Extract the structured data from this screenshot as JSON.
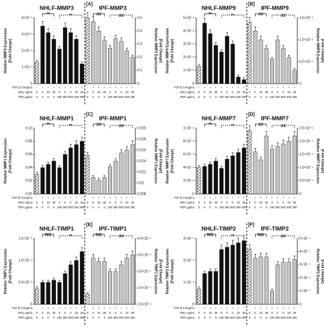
{
  "conditions": {
    "rows": [
      {
        "label": "TGF-β 2.5ng/mL",
        "values": [
          "-",
          "+",
          "+",
          "+",
          "+",
          "+",
          "+",
          "+",
          "+",
          "-",
          "+",
          "+",
          "+",
          "+",
          "+",
          "+",
          "+",
          "+"
        ]
      },
      {
        "label": "INFγ ng/mL",
        "values": [
          "0",
          "0",
          "10",
          "30",
          "0",
          "0",
          "0",
          "10",
          "30",
          "0",
          "0",
          "10",
          "30",
          "0",
          "0",
          "0",
          "10",
          "30"
        ]
      },
      {
        "label": "PDF µg/mL",
        "values": [
          "0",
          "0",
          "0",
          "0",
          "100",
          "300",
          "500",
          "300",
          "300",
          "0",
          "0",
          "0",
          "0",
          "100",
          "300",
          "500",
          "300",
          "300"
        ]
      }
    ]
  },
  "chart_data": [
    {
      "type": "bar",
      "panel_label": "[A]",
      "group_titles": [
        "NHLF-MMP3",
        "IPF-MMP3"
      ],
      "ylabel": [
        "Relative MMP3 Expression",
        "[Fold Change]"
      ],
      "y2label": [
        "Relative MMP3 Expression",
        "[Fold Change]"
      ],
      "ylim": [
        0,
        0.04
      ],
      "yticks": [
        0,
        {
          "value": 0.01,
          "label": "1×10⁻²"
        },
        {
          "value": 0.02,
          "label": "2×10⁻²"
        },
        {
          "value": 0.03,
          "label": "3×10⁻²"
        },
        {
          "value": 0.04,
          "label": "4×10⁻²"
        }
      ],
      "y2lim": [
        0,
        0.5
      ],
      "y2ticks": [
        0,
        0.1,
        0.2,
        0.3,
        0.4,
        0.5
      ],
      "annotations": [
        [
          "**",
          "**"
        ],
        [
          "##",
          "##"
        ]
      ],
      "series": [
        {
          "name": "NHLF",
          "color": "#111111",
          "values": [
            0.013,
            0.035,
            0.031,
            0.027,
            0.021,
            0.034,
            0.031,
            0.027,
            0.012
          ]
        },
        {
          "name": "IPF",
          "color": "#c4c4c4",
          "axis": "y2",
          "values": [
            0.5,
            0.47,
            0.4,
            0.33,
            0.27,
            0.34,
            0.32,
            0.25,
            0.2
          ]
        }
      ]
    },
    {
      "type": "bar",
      "panel_label": "[B]",
      "group_titles": [
        "NHLF-MMP9",
        "IPF-MMP9"
      ],
      "ylabel": [
        "Relative MMP9 Expression",
        "[Fold Change]"
      ],
      "y2label": [
        "Relative MMP9 Expression",
        "[Fold Change]"
      ],
      "ylim": [
        0,
        5e-06
      ],
      "yticks": [
        0,
        {
          "value": 1e-06,
          "label": "1×10⁻⁶"
        },
        {
          "value": 2e-06,
          "label": "2×10⁻⁶"
        },
        {
          "value": 3e-06,
          "label": "3×10⁻⁶"
        },
        {
          "value": 4e-06,
          "label": "4×10⁻⁶"
        },
        {
          "value": 5e-06,
          "label": "5×10⁻⁶"
        }
      ],
      "y2lim": [
        0,
        1.5e-05
      ],
      "y2ticks": [
        0,
        {
          "value": 5e-06,
          "label": "5.0×10⁻⁶"
        },
        {
          "value": 1e-05,
          "label": "1.0×10⁻⁵"
        },
        {
          "value": 1.5e-05,
          "label": "1.5×10⁻⁵"
        }
      ],
      "annotations": [
        [
          "**",
          "**"
        ],
        [
          "##",
          "##"
        ]
      ],
      "series": [
        {
          "name": "NHLF",
          "color": "#111111",
          "values": [
            1.3e-06,
            4.6e-06,
            3.8e-06,
            2.9e-06,
            2.4e-06,
            3.6e-06,
            3e-06,
            5e-07,
            3e-07
          ]
        },
        {
          "name": "IPF",
          "color": "#c4c4c4",
          "axis": "y2",
          "values": [
            1.4e-05,
            1.2e-05,
            1e-05,
            8e-06,
            5.5e-06,
            1e-05,
            8e-06,
            6e-06,
            3e-06
          ]
        }
      ]
    },
    {
      "type": "bar",
      "panel_label": "[C]",
      "group_titles": [
        "NHLF-MMP1",
        "IPF-MMP1"
      ],
      "ylabel": [
        "Relative MMP1 Expression",
        "[Fold Change]"
      ],
      "y2label": [
        "Relative MMP1 Expression",
        "[Fold Change]"
      ],
      "ylim": [
        0,
        0.1
      ],
      "yticks": [
        {
          "value": 0,
          "label": "0.00"
        },
        {
          "value": 0.02,
          "label": "0.02"
        },
        {
          "value": 0.04,
          "label": "0.04"
        },
        {
          "value": 0.06,
          "label": "0.06"
        },
        {
          "value": 0.08,
          "label": "0.08"
        },
        {
          "value": 0.1,
          "label": "0.10"
        }
      ],
      "y2lim": [
        0.008,
        0.02
      ],
      "y2ticks": [
        0.008,
        0.01,
        0.012,
        0.014,
        0.016,
        0.018,
        {
          "value": 0.02,
          "label": "0.020"
        }
      ],
      "annotations": [
        [
          "**",
          "**"
        ],
        [
          "##",
          "##"
        ]
      ],
      "series": [
        {
          "name": "NHLF",
          "color": "#111111",
          "values": [
            0.03,
            0.04,
            0.045,
            0.05,
            0.04,
            0.06,
            0.07,
            0.075,
            0.08
          ]
        },
        {
          "name": "IPF",
          "color": "#c4c4c4",
          "axis": "y2",
          "values": [
            0.015,
            0.011,
            0.0105,
            0.011,
            0.013,
            0.014,
            0.0155,
            0.016,
            0.017
          ]
        }
      ]
    },
    {
      "type": "bar",
      "panel_label": "[D]",
      "group_titles": [
        "NHLF-MMP7",
        "IPF-MMP7"
      ],
      "ylabel": [
        "Relative MMP7 Expression",
        "[Fold Change]"
      ],
      "y2label": [
        "Relative MMP7 Expression",
        "[Fold Change]"
      ],
      "ylim": [
        0,
        1e-05
      ],
      "yticks": [
        0,
        {
          "value": 2e-06,
          "label": "2×10⁻⁶"
        },
        {
          "value": 4e-06,
          "label": "4×10⁻⁶"
        },
        {
          "value": 6e-06,
          "label": "6×10⁻⁶"
        },
        {
          "value": 8e-06,
          "label": "8×10⁻⁶"
        },
        {
          "value": 1e-05,
          "label": "1×10⁻⁵"
        }
      ],
      "y2lim": [
        0,
        2.5e-05
      ],
      "y2ticks": [
        0,
        {
          "value": 5e-06,
          "label": "5.0×10⁻⁶"
        },
        {
          "value": 1e-05,
          "label": "1.0×10⁻⁵"
        },
        {
          "value": 1.5e-05,
          "label": "1.5×10⁻⁵"
        },
        {
          "value": 2e-05,
          "label": "2.0×10⁻⁵"
        },
        {
          "value": 2.5e-05,
          "label": "2.5×10⁻⁵"
        }
      ],
      "annotations": [
        [
          "**",
          "**"
        ],
        [
          "##",
          "##"
        ]
      ],
      "series": [
        {
          "name": "NHLF",
          "color": "#111111",
          "values": [
            4e-06,
            4.2e-06,
            4.5e-06,
            5e-06,
            3.9e-06,
            5.3e-06,
            5.8e-06,
            6.3e-06,
            7e-06
          ]
        },
        {
          "name": "IPF",
          "color": "#c4c4c4",
          "axis": "y2",
          "values": [
            2.4e-05,
            1.6e-05,
            1.3e-05,
            2.2e-05,
            1.7e-05,
            1.8e-05,
            1.9e-05,
            2e-05,
            2.2e-05
          ]
        }
      ]
    },
    {
      "type": "bar",
      "panel_label": "[E]",
      "group_titles": [
        "NHLF-TIMP1",
        "IPF-TIMP1"
      ],
      "ylabel": [
        "Relative TIMP1 Expression",
        "[Fold Change]"
      ],
      "y2label": [
        "Relative TIMP1 Expression",
        "[Fold Change]"
      ],
      "ylim": [
        0,
        1.5e-05
      ],
      "yticks": [
        0,
        {
          "value": 5e-06,
          "label": "5.0×10⁻⁶"
        },
        {
          "value": 1e-05,
          "label": "1.0×10⁻⁵"
        },
        {
          "value": 1.5e-05,
          "label": "1.5×10⁻⁵"
        }
      ],
      "y2lim": [
        2e-05,
        4e-05
      ],
      "y2ticks": [
        {
          "value": 2e-05,
          "label": "2.0×10⁻⁵"
        },
        {
          "value": 2.5e-05,
          "label": "2.5×10⁻⁵"
        },
        {
          "value": 3e-05,
          "label": "3.0×10⁻⁵"
        },
        {
          "value": 3.5e-05,
          "label": "3.5×10⁻⁵"
        },
        {
          "value": 4e-05,
          "label": "4.0×10⁻⁵"
        }
      ],
      "annotations": [
        [
          "NS",
          "**"
        ],
        [
          "NS",
          "##"
        ]
      ],
      "series": [
        {
          "name": "NHLF",
          "color": "#111111",
          "values": [
            3.5e-06,
            5e-06,
            5e-06,
            5.5e-06,
            5e-06,
            7e-06,
            9e-06,
            1e-05,
            1.2e-05
          ]
        },
        {
          "name": "IPF",
          "color": "#c4c4c4",
          "axis": "y2",
          "values": [
            2.3e-05,
            3.4e-05,
            3.3e-05,
            3.3e-05,
            3e-05,
            3e-05,
            3.2e-05,
            3.4e-05,
            3.5e-05
          ]
        }
      ]
    },
    {
      "type": "bar",
      "panel_label": "[F]",
      "group_titles": [
        "NHLF-TIMP2",
        "IPF-TIMP2"
      ],
      "ylabel": [
        "Relative TIMP2 Expression",
        "[Fold Change]"
      ],
      "y2label": [
        "Relative TIMP2 Expression",
        "[Fold Change]"
      ],
      "ylim": [
        0,
        3e-05
      ],
      "yticks": [
        0,
        {
          "value": 1e-05,
          "label": "1×10⁻⁵"
        },
        {
          "value": 2e-05,
          "label": "2×10⁻⁵"
        },
        {
          "value": 3e-05,
          "label": "3×10⁻⁵"
        }
      ],
      "y2lim": [
        0,
        0.0005
      ],
      "y2ticks": [
        0,
        {
          "value": 0.0001,
          "label": "1×10⁻⁴"
        },
        {
          "value": 0.0002,
          "label": "2×10⁻⁴"
        },
        {
          "value": 0.0003,
          "label": "3×10⁻⁴"
        },
        {
          "value": 0.0004,
          "label": "4×10⁻⁴"
        },
        {
          "value": 0.0005,
          "label": "5×10⁻⁴"
        }
      ],
      "annotations": [
        [
          "NS",
          "**"
        ],
        [
          "NS",
          "##"
        ]
      ],
      "series": [
        {
          "name": "NHLF",
          "color": "#111111",
          "values": [
            7e-06,
            1.4e-05,
            1.5e-05,
            1.5e-05,
            2.5e-05,
            2.6e-05,
            2.7e-05,
            2.8e-05,
            2.9e-05
          ]
        },
        {
          "name": "IPF",
          "color": "#c4c4c4",
          "axis": "y2",
          "values": [
            0.00042,
            0.00035,
            0.00036,
            0.00036,
            0.0001,
            0.0003,
            0.00032,
            0.00032,
            0.00034
          ]
        }
      ]
    }
  ]
}
